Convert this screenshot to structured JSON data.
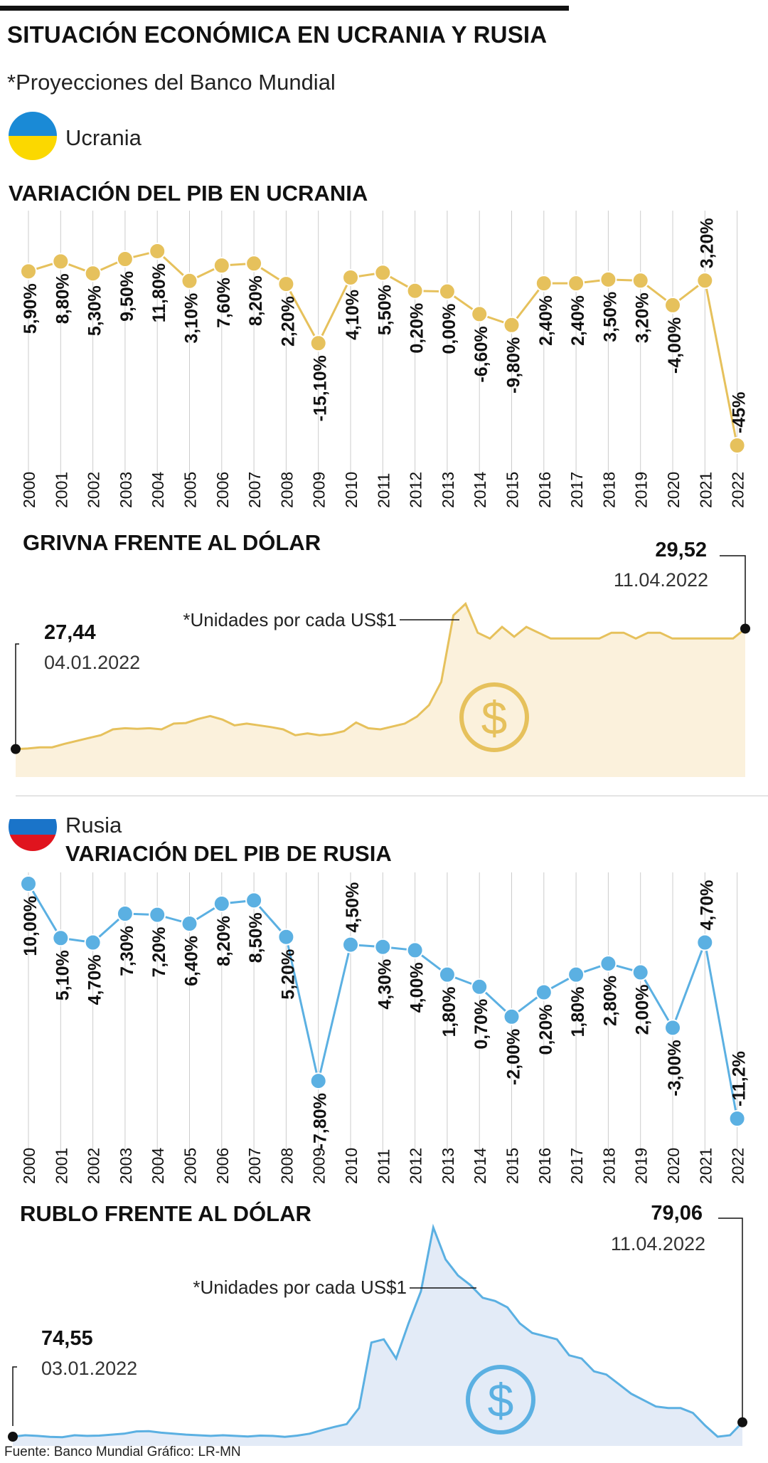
{
  "header": {
    "title": "SITUACIÓN ECONÓMICA EN UCRANIA Y RUSIA",
    "subtitle": "*Proyecciones del Banco Mundial"
  },
  "ukraine": {
    "country": "Ucrania",
    "flag_colors": [
      "#1a8ad6",
      "#fbd800"
    ]
  },
  "russia": {
    "country": "Rusia",
    "flag_colors": [
      "#ffffff",
      "#1a74c9",
      "#e0141e"
    ]
  },
  "colors": {
    "gold": "#e6c15c",
    "gold_fill": "#fbf1dc",
    "blue": "#5bb0e2",
    "blue_fill": "#e3ebf7",
    "grid": "#cccccc",
    "text": "#111111"
  },
  "footer": {
    "source": "Fuente: Banco Mundial   Gráfico: LR-MN"
  },
  "chart_data": [
    {
      "id": "ua_gdp",
      "type": "line",
      "title": "VARIACIÓN DEL PIB EN UCRANIA",
      "categories": [
        "2000",
        "2001",
        "2002",
        "2003",
        "2004",
        "2005",
        "2006",
        "2007",
        "2008",
        "2009",
        "2010",
        "2011",
        "2012",
        "2013",
        "2014",
        "2015",
        "2016",
        "2017",
        "2018",
        "2019",
        "2020",
        "2021",
        "2022"
      ],
      "values": [
        5.9,
        8.8,
        5.3,
        9.5,
        11.8,
        3.1,
        7.6,
        8.2,
        2.2,
        -15.1,
        4.1,
        5.5,
        0.2,
        0.0,
        -6.6,
        -9.8,
        2.4,
        2.4,
        3.5,
        3.2,
        -4.0,
        3.2,
        -45.0
      ],
      "labels": [
        "5,90%",
        "8,80%",
        "5,30%",
        "9,50%",
        "11,80%",
        "3,10%",
        "7,60%",
        "8,20%",
        "2,20%",
        "-15,10%",
        "4,10%",
        "5,50%",
        "0,20%",
        "0,00%",
        "-6,60%",
        "-9,80%",
        "2,40%",
        "2,40%",
        "3,50%",
        "3,20%",
        "-4,00%",
        "3,20%",
        "-45%"
      ],
      "ylim": [
        -45,
        12
      ]
    },
    {
      "id": "ua_fx",
      "type": "area",
      "title": "GRIVNA FRENTE AL DÓLAR",
      "note": "*Unidades por cada US$1",
      "start": {
        "value": "27,44",
        "date": "04.01.2022"
      },
      "end": {
        "value": "29,52",
        "date": "11.04.2022"
      },
      "values": [
        27.44,
        27.45,
        27.47,
        27.47,
        27.53,
        27.58,
        27.63,
        27.68,
        27.78,
        27.8,
        27.79,
        27.8,
        27.78,
        27.88,
        27.89,
        27.96,
        28.01,
        27.95,
        27.85,
        27.88,
        27.85,
        27.82,
        27.78,
        27.68,
        27.71,
        27.68,
        27.7,
        27.75,
        27.9,
        27.8,
        27.78,
        27.83,
        27.88,
        28.0,
        28.2,
        28.6,
        29.75,
        29.95,
        29.45,
        29.35,
        29.55,
        29.38,
        29.55,
        29.45,
        29.35,
        29.35,
        29.35,
        29.35,
        29.35,
        29.45,
        29.45,
        29.35,
        29.45,
        29.45,
        29.35,
        29.35,
        29.35,
        29.35,
        29.35,
        29.35,
        29.52
      ],
      "ylim": [
        27.35,
        30.3
      ]
    },
    {
      "id": "ru_gdp",
      "type": "line",
      "title": "VARIACIÓN DEL PIB DE RUSIA",
      "categories": [
        "2000",
        "2001",
        "2002",
        "2003",
        "2004",
        "2005",
        "2006",
        "2007",
        "2008",
        "2009",
        "2010",
        "2011",
        "2012",
        "2013",
        "2014",
        "2015",
        "2016",
        "2017",
        "2018",
        "2019",
        "2020",
        "2021",
        "2022"
      ],
      "values": [
        10.0,
        5.1,
        4.7,
        7.3,
        7.2,
        6.4,
        8.2,
        8.5,
        5.2,
        -7.8,
        4.5,
        4.3,
        4.0,
        1.8,
        0.7,
        -2.0,
        0.2,
        1.8,
        2.8,
        2.0,
        -3.0,
        4.7,
        -11.2
      ],
      "labels": [
        "10,00%",
        "5,10%",
        "4,70%",
        "7,30%",
        "7,20%",
        "6,40%",
        "8,20%",
        "8,50%",
        "5,20%",
        "-7,80%",
        "4,50%",
        "4,30%",
        "4,00%",
        "1,80%",
        "0,70%",
        "-2,00%",
        "0,20%",
        "1,80%",
        "2,80%",
        "2,00%",
        "-3,00%",
        "4,70%",
        "-11,2%"
      ],
      "ylim": [
        -11.2,
        10
      ]
    },
    {
      "id": "ru_fx",
      "type": "area",
      "title": "RUBLO FRENTE AL DÓLAR",
      "note": "*Unidades por cada US$1",
      "start": {
        "value": "74,55",
        "date": "03.01.2022"
      },
      "end": {
        "value": "79,06",
        "date": "11.04.2022"
      },
      "values": [
        74.55,
        75.0,
        74.8,
        74.5,
        74.4,
        75.0,
        74.8,
        74.9,
        75.2,
        75.5,
        76.2,
        76.3,
        75.8,
        75.5,
        75.2,
        75.0,
        74.8,
        75.0,
        74.8,
        74.6,
        74.9,
        74.8,
        74.5,
        74.9,
        75.5,
        76.6,
        77.6,
        78.5,
        83.5,
        104.0,
        105.0,
        99.0,
        110.0,
        120.0,
        140.0,
        130.0,
        125.0,
        122.0,
        118.0,
        117.0,
        115.0,
        110.0,
        107.0,
        106.0,
        105.0,
        100.0,
        99.0,
        95.0,
        94.0,
        91.0,
        88.0,
        86.0,
        84.0,
        83.5,
        83.5,
        82.0,
        78.0,
        74.55,
        75.0,
        79.06
      ],
      "ylim": [
        73,
        142
      ]
    }
  ]
}
